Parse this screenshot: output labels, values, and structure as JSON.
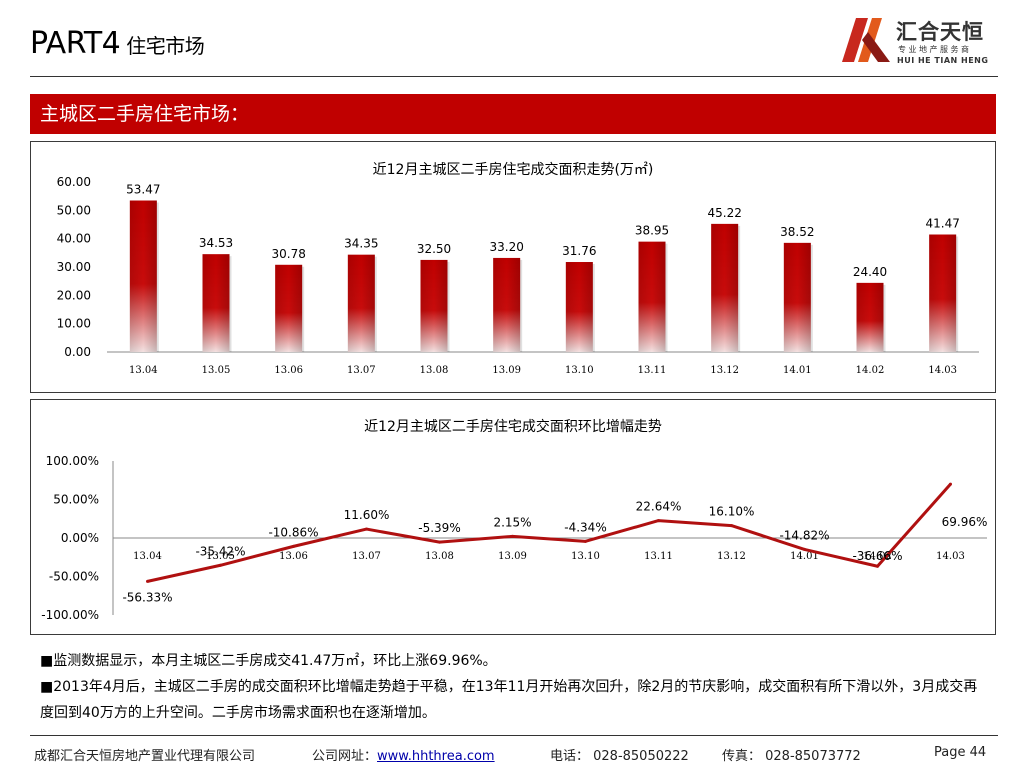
{
  "header": {
    "part": "PART4",
    "section": "住宅市场",
    "logo": {
      "cn": "汇合天恒",
      "sub": "专业地产服务商",
      "en": "HUI HE TIAN HENG"
    }
  },
  "banner": "主城区二手房住宅市场：",
  "chart_data": [
    {
      "type": "bar",
      "title": "近12月主城区二手房住宅成交面积走势(万㎡)",
      "categories": [
        "13.04",
        "13.05",
        "13.06",
        "13.07",
        "13.08",
        "13.09",
        "13.10",
        "13.11",
        "13.12",
        "14.01",
        "14.02",
        "14.03"
      ],
      "values": [
        53.47,
        34.53,
        30.78,
        34.35,
        32.5,
        33.2,
        31.76,
        38.95,
        45.22,
        38.52,
        24.4,
        41.47
      ],
      "data_labels": [
        "53.47",
        "34.53",
        "30.78",
        "34.35",
        "32.50",
        "33.20",
        "31.76",
        "38.95",
        "45.22",
        "38.52",
        "24.40",
        "41.47"
      ],
      "ylim": [
        0,
        60
      ],
      "yticks": [
        "0.00",
        "10.00",
        "20.00",
        "30.00",
        "40.00",
        "50.00",
        "60.00"
      ],
      "grid": false,
      "color": "#c00000"
    },
    {
      "type": "line",
      "title": "近12月主城区二手房住宅成交面积环比增幅走势",
      "categories": [
        "13.04",
        "13.05",
        "13.06",
        "13.07",
        "13.08",
        "13.09",
        "13.10",
        "13.11",
        "13.12",
        "14.01",
        "14.02",
        "14.03"
      ],
      "values": [
        -56.33,
        -35.42,
        -10.86,
        11.6,
        -5.39,
        2.15,
        -4.34,
        22.64,
        16.1,
        -14.82,
        -36.66,
        69.96
      ],
      "data_labels": [
        "-56.33%",
        "-35.42%",
        "-10.86%",
        "11.60%",
        "-5.39%",
        "2.15%",
        "-4.34%",
        "22.64%",
        "16.10%",
        "-14.82%",
        "-36.66%",
        "69.96%"
      ],
      "ylim": [
        -100,
        100
      ],
      "yticks": [
        "-100.00%",
        "-50.00%",
        "0.00%",
        "50.00%",
        "100.00%"
      ],
      "grid": false,
      "color": "#b01010"
    }
  ],
  "notes": [
    "■监测数据显示，本月主城区二手房成交41.47万㎡，环比上涨69.96%。",
    "■2013年4月后，主城区二手房的成交面积环比增幅走势趋于平稳，在13年11月开始再次回升，除2月的节庆影响，成交面积有所下滑以外，3月成交再度回到40万方的上升空间。二手房市场需求面积也在逐渐增加。"
  ],
  "footer": {
    "company": "成都汇合天恒房地产置业代理有限公司",
    "site_label": "公司网址：",
    "site_url": "www.hhthrea.com",
    "phone": "电话： 028-85050222",
    "fax": "传真： 028-85073772",
    "page": "Page 44"
  }
}
